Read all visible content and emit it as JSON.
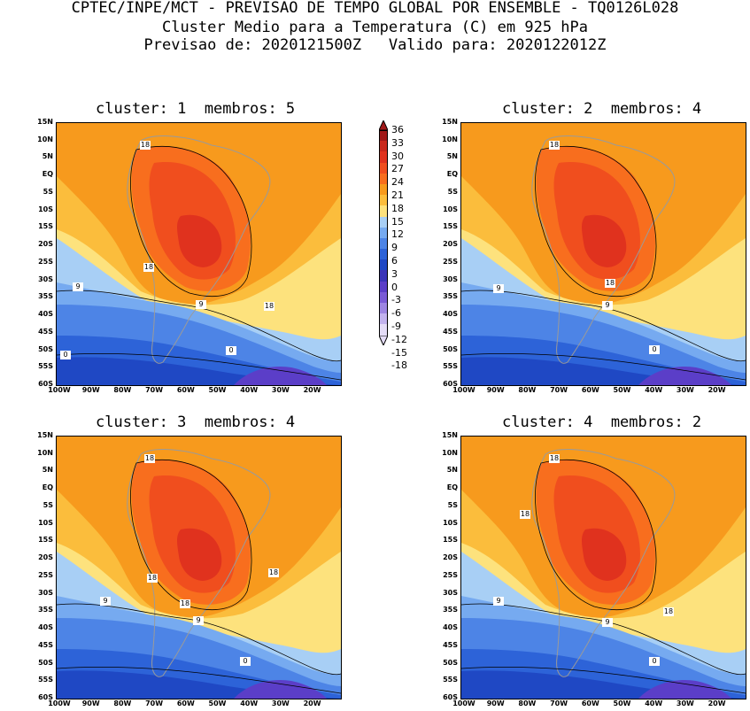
{
  "header": {
    "line1": "CPTEC/INPE/MCT - PREVISAO DE TEMPO GLOBAL POR ENSEMBLE - TQ0126L028",
    "line2": "Cluster Medio para a Temperatura (C) em 925 hPa",
    "line3": "Previsao de: 2020121500Z   Valido para: 2020122012Z"
  },
  "panels": [
    {
      "title": "cluster: 1  membros: 5"
    },
    {
      "title": "cluster: 2  membros: 4"
    },
    {
      "title": "cluster: 3  membros: 4"
    },
    {
      "title": "cluster: 4  membros: 2"
    }
  ],
  "axes": {
    "lat_labels": [
      "15N",
      "10N",
      "5N",
      "EQ",
      "5S",
      "10S",
      "15S",
      "20S",
      "25S",
      "30S",
      "35S",
      "40S",
      "45S",
      "50S",
      "55S",
      "60S"
    ],
    "lon_labels": [
      "100W",
      "90W",
      "80W",
      "70W",
      "60W",
      "50W",
      "40W",
      "30W",
      "20W"
    ]
  },
  "contour_labels": {
    "warm": "18",
    "cool": "9",
    "cold": "0"
  },
  "colorbar": {
    "levels": [
      "36",
      "33",
      "30",
      "27",
      "24",
      "21",
      "18",
      "15",
      "12",
      "9",
      "6",
      "3",
      "0",
      "-3",
      "-6",
      "-9",
      "-12",
      "-15",
      "-18"
    ],
    "colors": [
      "#a01818",
      "#c8281c",
      "#e0321e",
      "#f04e1e",
      "#f86e1e",
      "#f79a1d",
      "#fbbd3c",
      "#fde27d",
      "#a8cff5",
      "#76aaf0",
      "#4d84e6",
      "#2d63d8",
      "#1f48c4",
      "#3a34b8",
      "#5b3ec8",
      "#7a5bd6",
      "#9d85e2",
      "#c2b2ee",
      "#e4dcf7"
    ]
  }
}
